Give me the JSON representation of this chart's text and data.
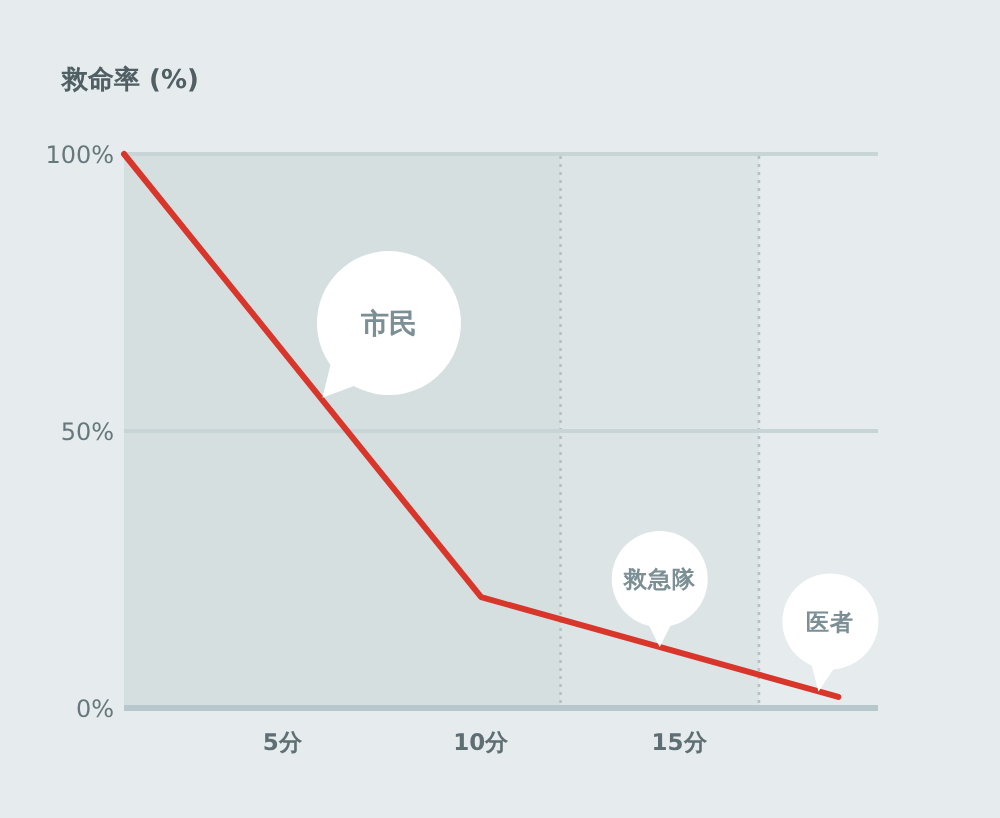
{
  "chart_data": {
    "type": "line",
    "ylabel": "救命率 (%)",
    "x": [
      1,
      10,
      19
    ],
    "series": [
      {
        "color": "#d9362b",
        "values": [
          100,
          20,
          2
        ]
      }
    ],
    "xlim": [
      1,
      20
    ],
    "ylim": [
      0,
      100
    ],
    "xticks": [
      {
        "value": 5,
        "label": "5分"
      },
      {
        "value": 10,
        "label": "10分"
      },
      {
        "value": 15,
        "label": "15分"
      }
    ],
    "yticks": [
      {
        "value": 0,
        "label": "0%"
      },
      {
        "value": 50,
        "label": "50%"
      },
      {
        "value": 100,
        "label": "100%"
      }
    ],
    "grid": "y",
    "bands": [
      {
        "axis": "x",
        "from": 1,
        "to": 12,
        "color": "#d5dfe0"
      },
      {
        "axis": "x",
        "from": 12,
        "to": 17,
        "color": "#dde4e6"
      }
    ],
    "ref_lines": [
      {
        "axis": "x",
        "value": 12,
        "color": "#b5c0c2",
        "line_style": "dotted"
      },
      {
        "axis": "x",
        "value": 17,
        "color": "#b5c0c2",
        "line_style": "dotted"
      }
    ],
    "annotations": [
      {
        "text": "市民",
        "x": 6,
        "y": 56
      },
      {
        "text": "救急隊",
        "x": 14.5,
        "y": 11
      },
      {
        "text": "医者",
        "x": 18.5,
        "y": 3
      }
    ],
    "marker": "none",
    "line_style": "solid"
  }
}
